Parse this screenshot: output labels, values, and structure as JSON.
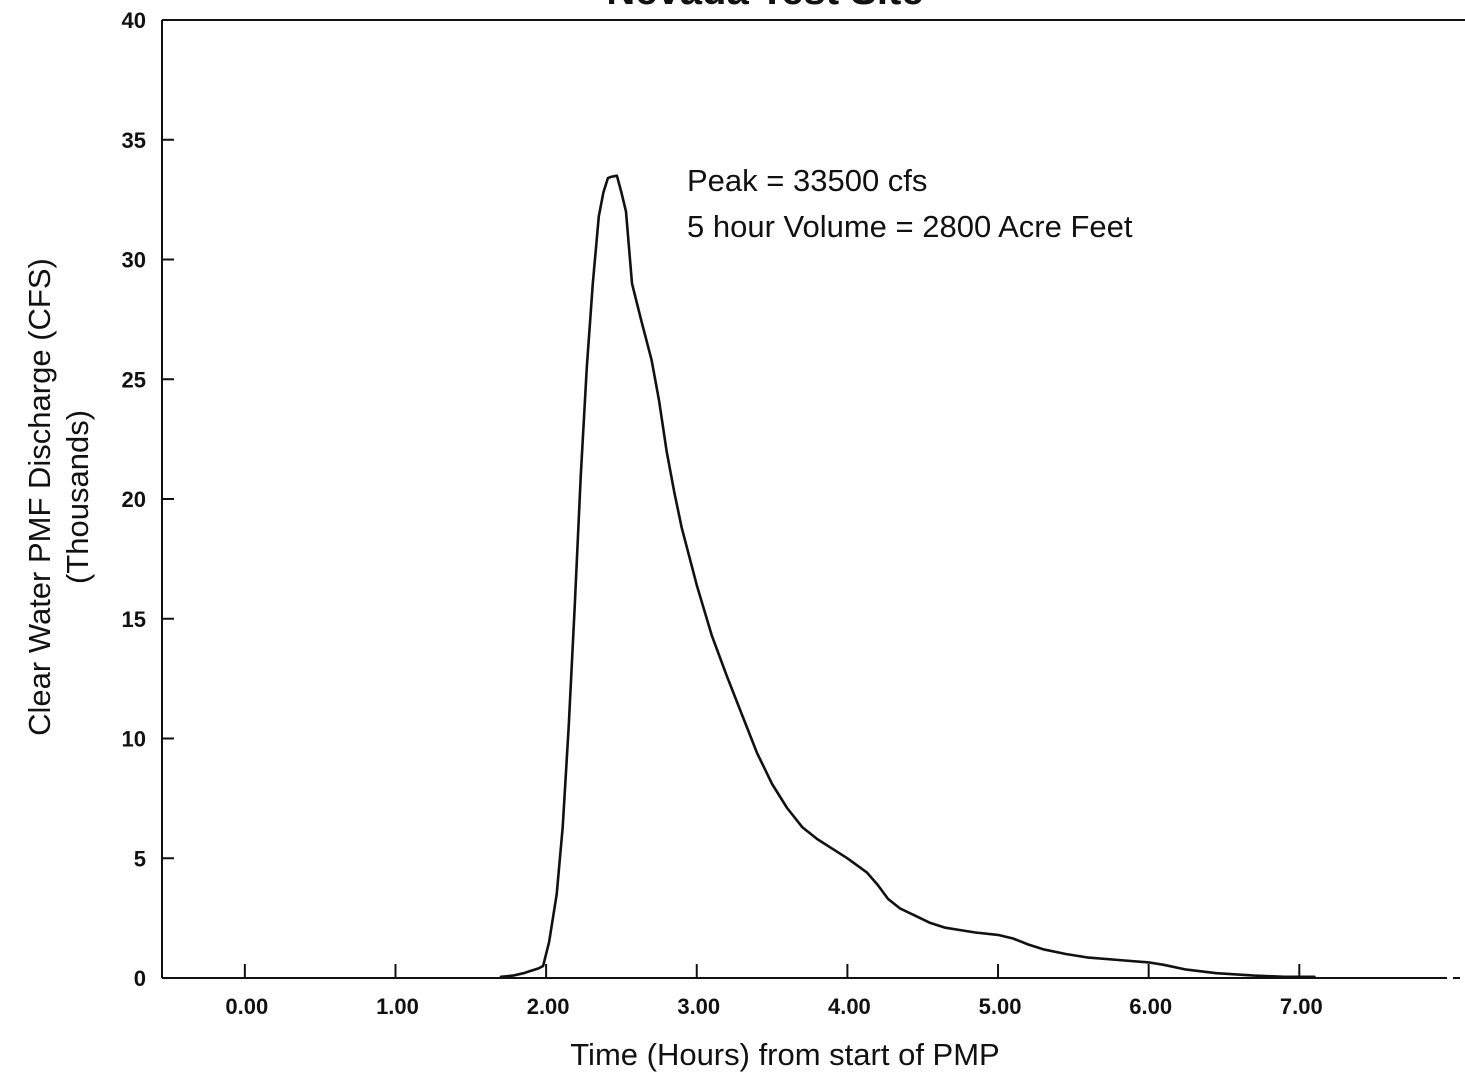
{
  "chart_data": {
    "type": "line",
    "title": "Nevada Test Site",
    "xlabel": "Time (Hours) from start of PMP",
    "ylabel": "Clear Water PMF Discharge (CFS)",
    "ylabel_sub": "(Thousands)",
    "xlim": [
      -0.55,
      8.1
    ],
    "ylim": [
      0,
      40
    ],
    "x_ticks": [
      0,
      1,
      2,
      3,
      4,
      5,
      6,
      7
    ],
    "x_tick_labels": [
      "0.00",
      "1.00",
      "2.00",
      "3.00",
      "4.00",
      "5.00",
      "6.00",
      "7.00"
    ],
    "y_ticks": [
      0,
      5,
      10,
      15,
      20,
      25,
      30,
      35,
      40
    ],
    "y_tick_labels": [
      "0",
      "5",
      "10",
      "15",
      "20",
      "25",
      "30",
      "35",
      "40"
    ],
    "grid": false,
    "annotations": [
      "Peak = 33500 cfs",
      "5 hour Volume = 2800 Acre Feet"
    ],
    "series": [
      {
        "color": "#111111",
        "x": [
          1.7,
          1.78,
          1.85,
          1.9,
          1.95,
          1.98,
          2.02,
          2.07,
          2.11,
          2.15,
          2.19,
          2.23,
          2.27,
          2.31,
          2.35,
          2.38,
          2.41,
          2.43,
          2.47,
          2.5,
          2.53,
          2.57,
          2.63,
          2.7,
          2.75,
          2.8,
          2.85,
          2.9,
          3.0,
          3.1,
          3.2,
          3.3,
          3.4,
          3.5,
          3.6,
          3.7,
          3.8,
          3.9,
          4.0,
          4.13,
          4.2,
          4.27,
          4.35,
          4.45,
          4.55,
          4.65,
          4.75,
          4.85,
          5.0,
          5.1,
          5.2,
          5.3,
          5.45,
          5.6,
          5.8,
          6.0,
          6.1,
          6.25,
          6.45,
          6.7,
          6.9,
          7.1
        ],
        "y": [
          0.05,
          0.1,
          0.2,
          0.3,
          0.4,
          0.5,
          1.5,
          3.5,
          6.3,
          10.5,
          15.5,
          21.0,
          25.5,
          29.0,
          31.8,
          32.8,
          33.4,
          33.45,
          33.5,
          32.8,
          32.0,
          29.0,
          27.5,
          25.8,
          24.1,
          22.0,
          20.3,
          18.8,
          16.4,
          14.3,
          12.6,
          11.0,
          9.4,
          8.1,
          7.1,
          6.3,
          5.8,
          5.4,
          5.0,
          4.4,
          3.9,
          3.3,
          2.9,
          2.6,
          2.3,
          2.1,
          2.0,
          1.9,
          1.8,
          1.65,
          1.4,
          1.2,
          1.0,
          0.85,
          0.75,
          0.65,
          0.55,
          0.35,
          0.2,
          0.1,
          0.05,
          0.05
        ]
      }
    ]
  }
}
